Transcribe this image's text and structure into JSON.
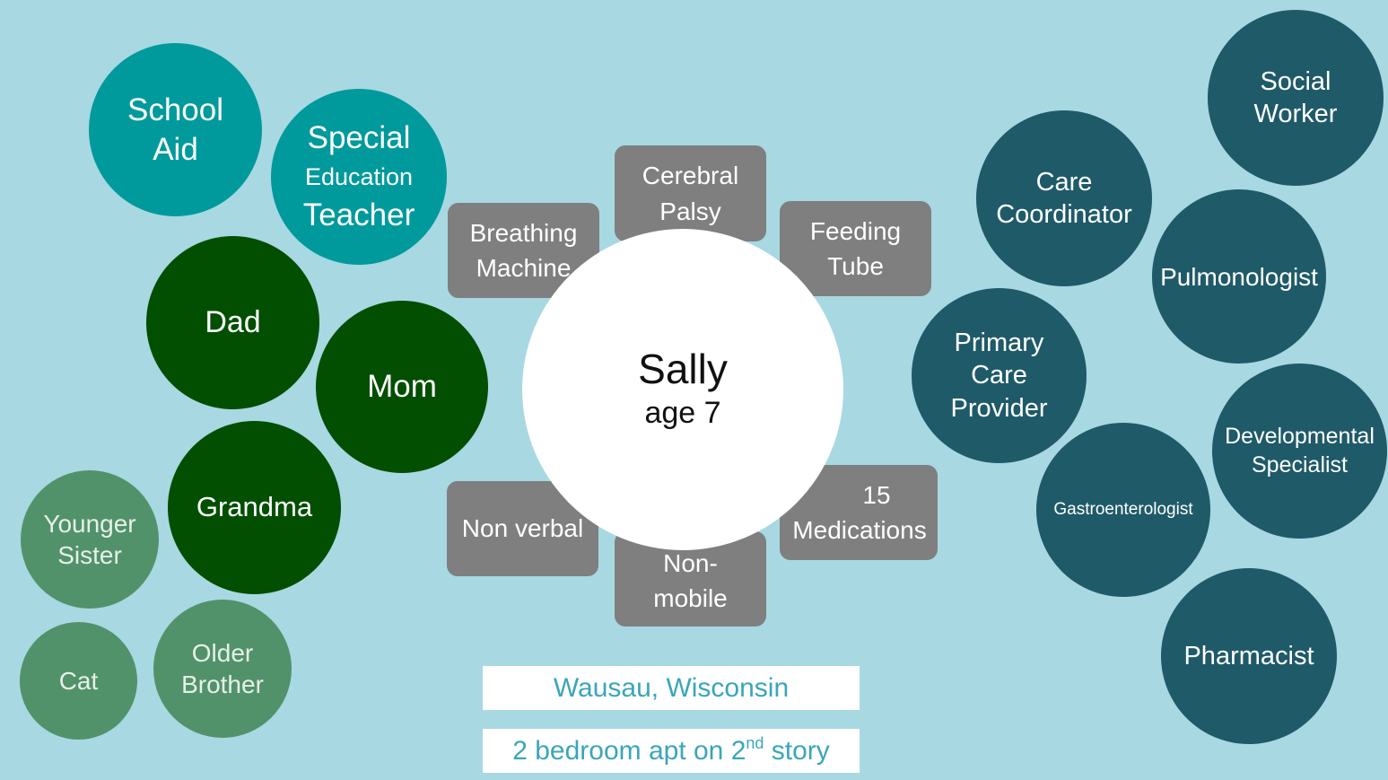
{
  "center": {
    "name": "Sally",
    "age": "age 7"
  },
  "education": {
    "school_aid": [
      "School",
      "Aid"
    ],
    "special_ed_teacher": [
      "Special",
      "Education",
      "Teacher"
    ]
  },
  "family": {
    "dad": "Dad",
    "mom": "Mom",
    "grandma": "Grandma",
    "younger_sister": [
      "Younger",
      "Sister"
    ],
    "cat": "Cat",
    "older_brother": [
      "Older",
      "Brother"
    ]
  },
  "conditions": {
    "cerebral_palsy": [
      "Cerebral",
      "Palsy"
    ],
    "breathing_machine": [
      "Breathing",
      "Machine"
    ],
    "feeding_tube": [
      "Feeding",
      "Tube"
    ],
    "non_verbal": "Non verbal",
    "non_mobile": [
      "Non-",
      "mobile"
    ],
    "medications": [
      "15",
      "Medications"
    ]
  },
  "providers": {
    "social_worker": [
      "Social",
      "Worker"
    ],
    "care_coordinator": [
      "Care",
      "Coordinator"
    ],
    "pulmonologist": "Pulmonologist",
    "primary_care": [
      "Primary",
      "Care",
      "Provider"
    ],
    "developmental_specialist": [
      "Developmental",
      "Specialist"
    ],
    "gastroenterologist": "Gastroenterologist",
    "pharmacist": "Pharmacist"
  },
  "location": {
    "city": "Wausau, Wisconsin",
    "housing_pre": "2 bedroom apt on 2",
    "housing_sup": "nd",
    "housing_post": " story"
  },
  "colors": {
    "background": "#a8d8e2",
    "education": "#009a9c",
    "close_family": "#024f01",
    "extended_family": "#52926a",
    "providers": "#1f5a69",
    "conditions": "#7f7f7f",
    "location_text": "#3aa6b9"
  }
}
